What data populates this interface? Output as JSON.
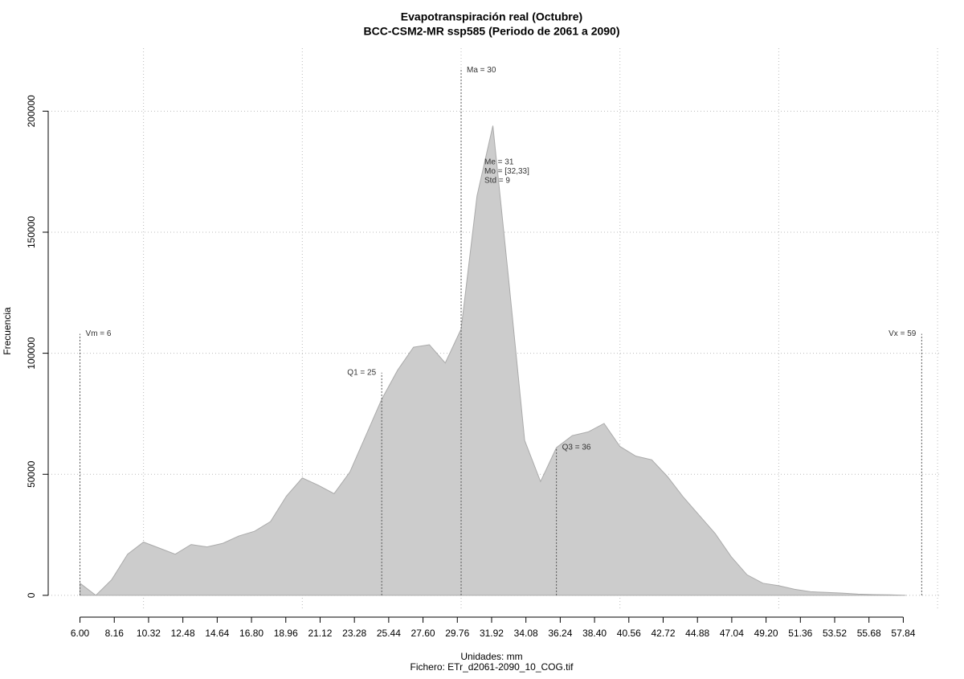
{
  "chart_data": {
    "type": "area",
    "title": "Evapotranspiración real (Octubre)",
    "subtitle": "BCC-CSM2-MR ssp585 (Periodo de 2061 a 2090)",
    "xlabel": "Unidades: mm",
    "caption": "Fichero: ETr_d2061-2090_10_COG.tif",
    "ylabel": "Frecuencia",
    "color": "#cccccc",
    "x": [
      6,
      7,
      8,
      9,
      10,
      11,
      12,
      13,
      14,
      15,
      16,
      17,
      18,
      19,
      20,
      21,
      22,
      23,
      24,
      25,
      26,
      27,
      28,
      29,
      30,
      31,
      32,
      33,
      34,
      35,
      36,
      37,
      38,
      39,
      40,
      41,
      42,
      43,
      44,
      45,
      46,
      47,
      48,
      49,
      50,
      51,
      52,
      53,
      54,
      55,
      56,
      57,
      58
    ],
    "values": [
      5000,
      0,
      6500,
      17000,
      22000,
      19500,
      17000,
      21000,
      20000,
      21500,
      24500,
      26500,
      30500,
      41000,
      48500,
      45500,
      42000,
      51000,
      66000,
      81000,
      93000,
      102500,
      103500,
      96000,
      110000,
      165000,
      194000,
      130000,
      64000,
      47000,
      61000,
      66000,
      67500,
      71000,
      61500,
      57500,
      56000,
      49000,
      40500,
      33000,
      25500,
      16000,
      8500,
      5000,
      4000,
      2500,
      1500,
      1200,
      900,
      500,
      300,
      200,
      0
    ],
    "xlim": [
      4,
      60.5
    ],
    "ylim": [
      -9000,
      226000
    ],
    "xticks": [
      {
        "value": 6,
        "label": "6.00"
      },
      8.16,
      10.32,
      12.48,
      14.64,
      {
        "value": 16.8,
        "label": "16.80"
      },
      18.96,
      21.12,
      23.28,
      25.44,
      {
        "value": 27.6,
        "label": "27.60"
      },
      29.76,
      31.92,
      34.08,
      36.24,
      {
        "value": 38.4,
        "label": "38.40"
      },
      40.56,
      42.72,
      44.88,
      47.04,
      {
        "value": 49.2,
        "label": "49.20"
      },
      51.36,
      53.52,
      55.68,
      57.84
    ],
    "yticks": [
      0,
      50000,
      100000,
      150000,
      200000
    ],
    "xgrid": [
      10,
      20,
      30,
      40,
      50,
      60
    ],
    "grid": true,
    "markers": [
      {
        "label": "Vm = 6",
        "x": 6,
        "y": 108000
      },
      {
        "label": "Q1 = 25",
        "x": 25,
        "y": 92000
      },
      {
        "label": "Ma = 30",
        "x": 30,
        "y": 217000
      },
      {
        "label": "Q3 = 36",
        "x": 36,
        "y": 61000
      },
      {
        "label": "Vx = 59",
        "x": 59,
        "y": 108000
      }
    ],
    "stats": [
      "Me = 31",
      "Mo = [32,33]",
      "Std = 9"
    ]
  }
}
